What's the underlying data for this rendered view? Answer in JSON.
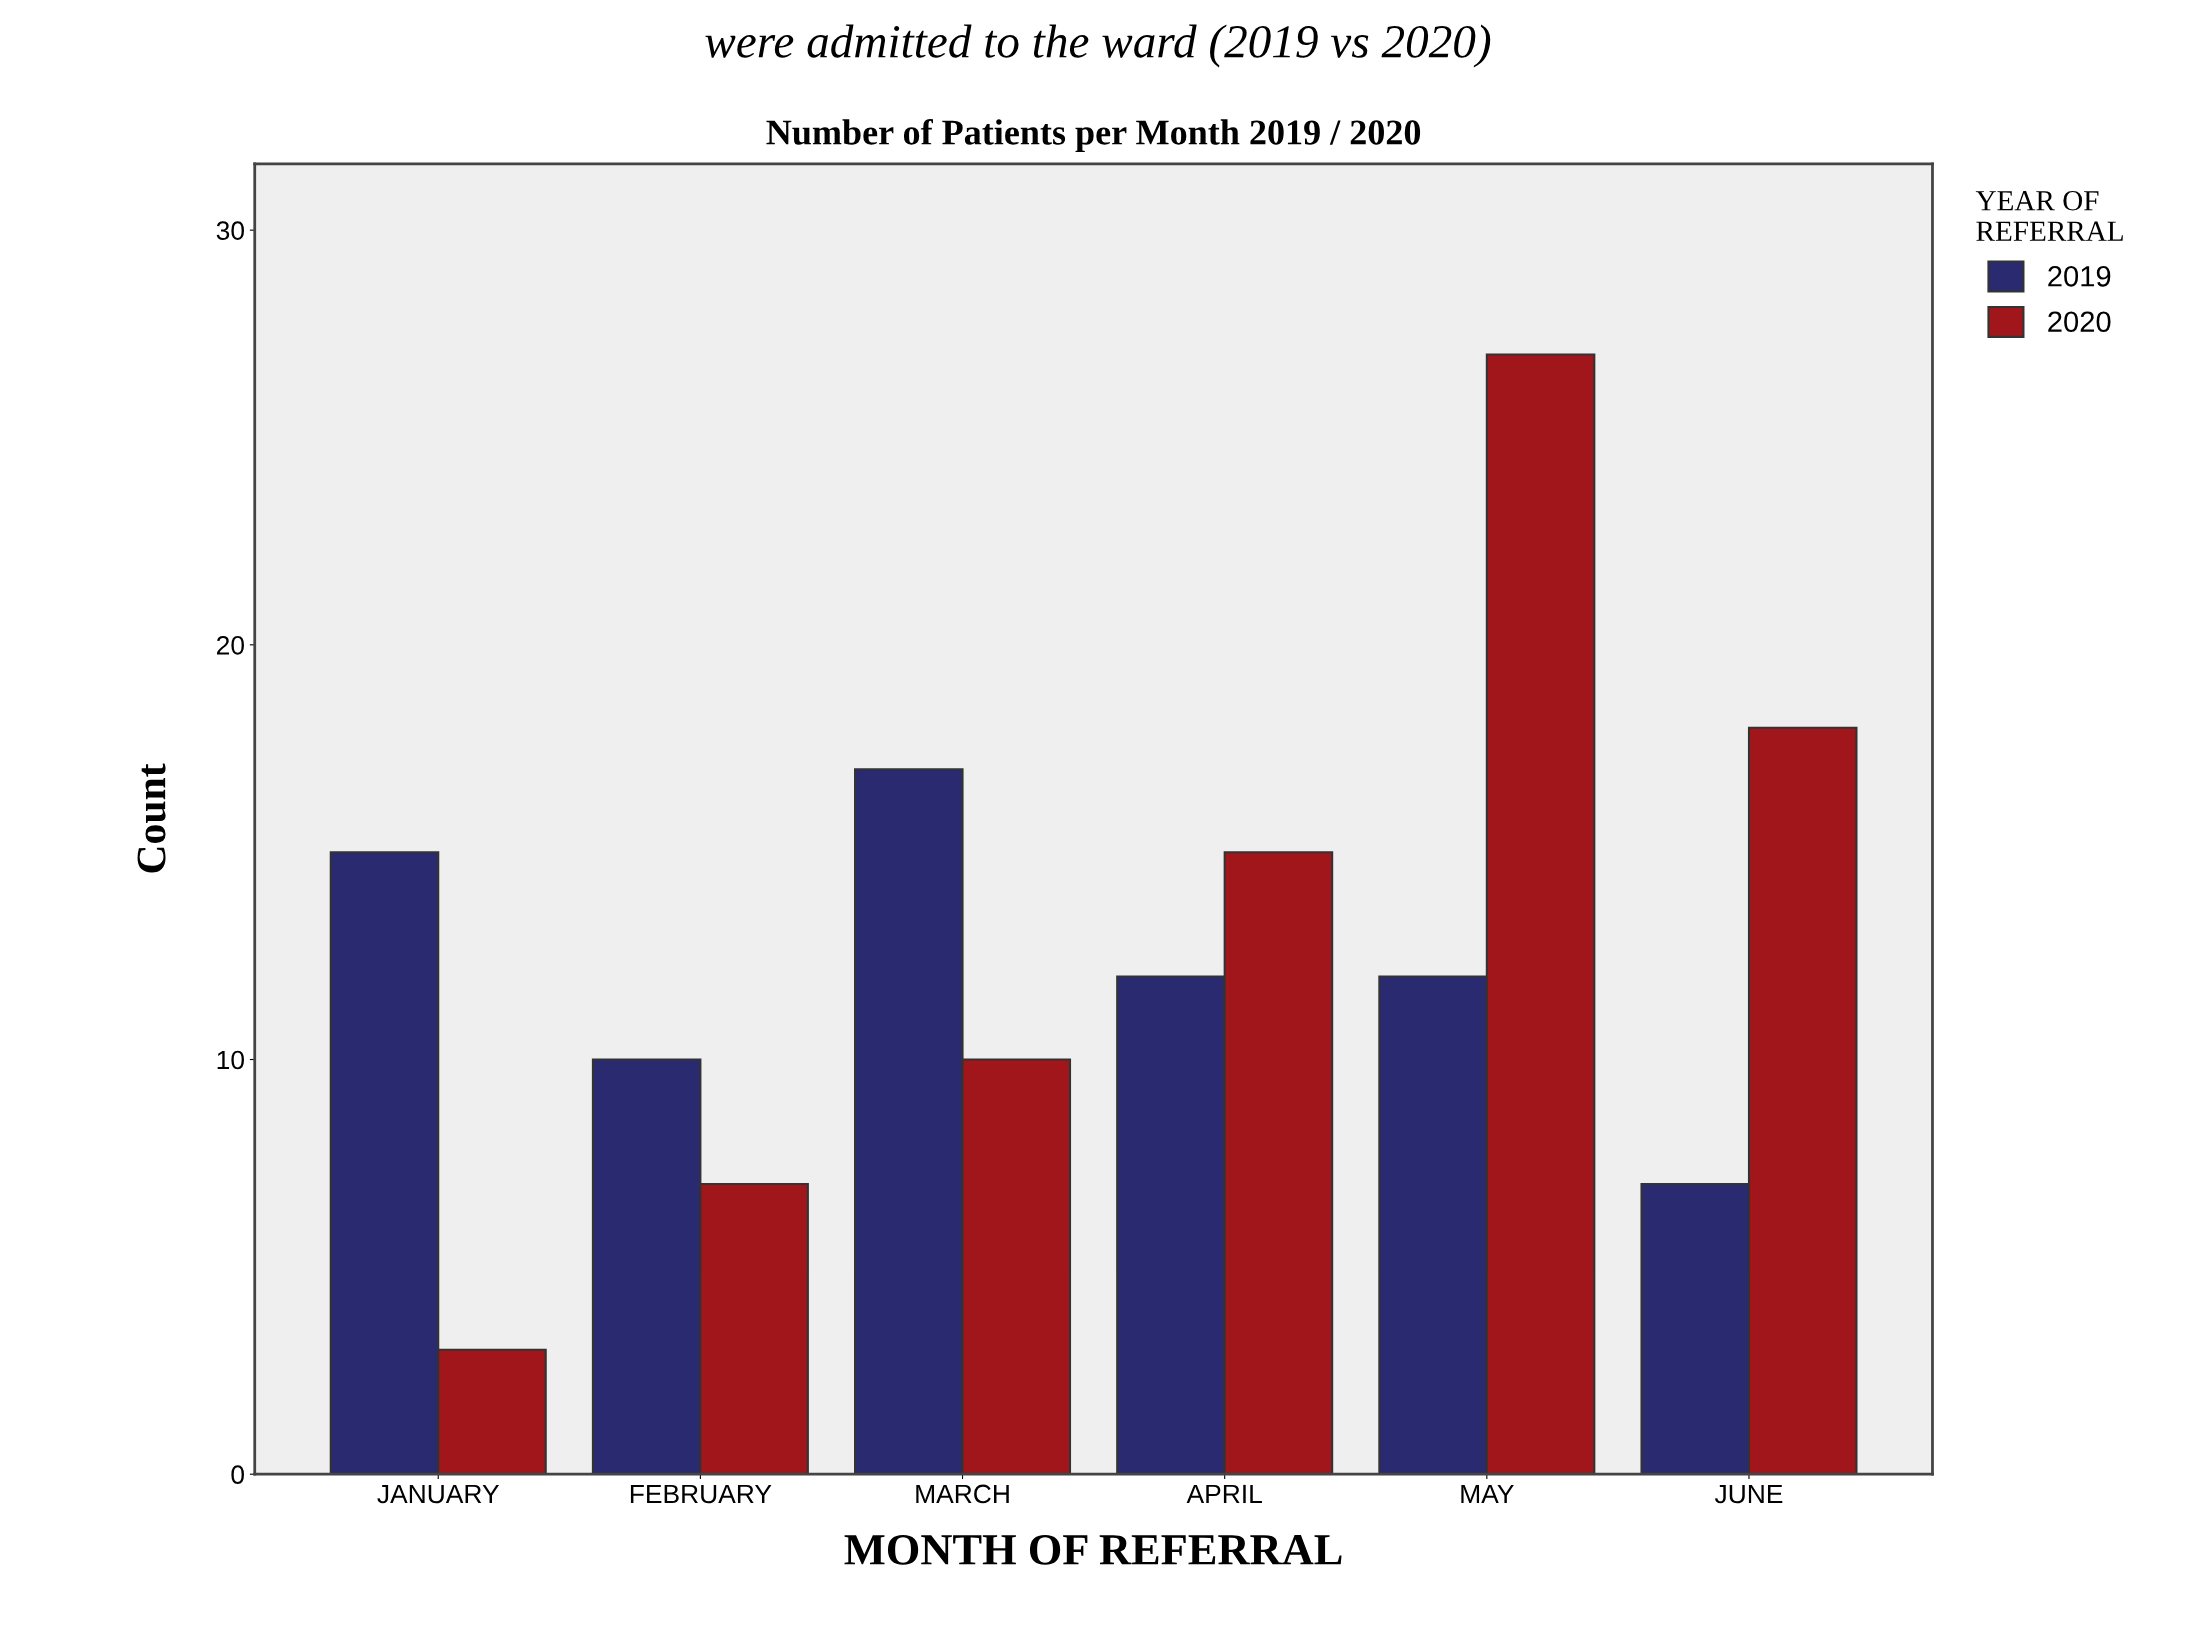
{
  "chart_data": {
    "type": "bar",
    "title": "Number of Patients per Month 2019 / 2020",
    "xlabel": "MONTH OF REFERRAL",
    "ylabel": "Count",
    "legend_title": "YEAR OF\nREFERRAL",
    "legend": "top right",
    "grid": false,
    "annotations": [
      "were admitted to the ward (2019 vs 2020)"
    ],
    "categories": [
      "JANUARY",
      "FEBRUARY",
      "MARCH",
      "APRIL",
      "MAY",
      "JUNE"
    ],
    "ylim": [
      0,
      31.6
    ],
    "yticks": [
      0,
      10,
      20,
      30
    ],
    "series": [
      {
        "name": "2019",
        "color": "#292a6f",
        "values": [
          15,
          10,
          17,
          12,
          12,
          7
        ]
      },
      {
        "name": "2020",
        "color": "#a1161b",
        "values": [
          3,
          7,
          10,
          15,
          27,
          18
        ]
      }
    ]
  }
}
